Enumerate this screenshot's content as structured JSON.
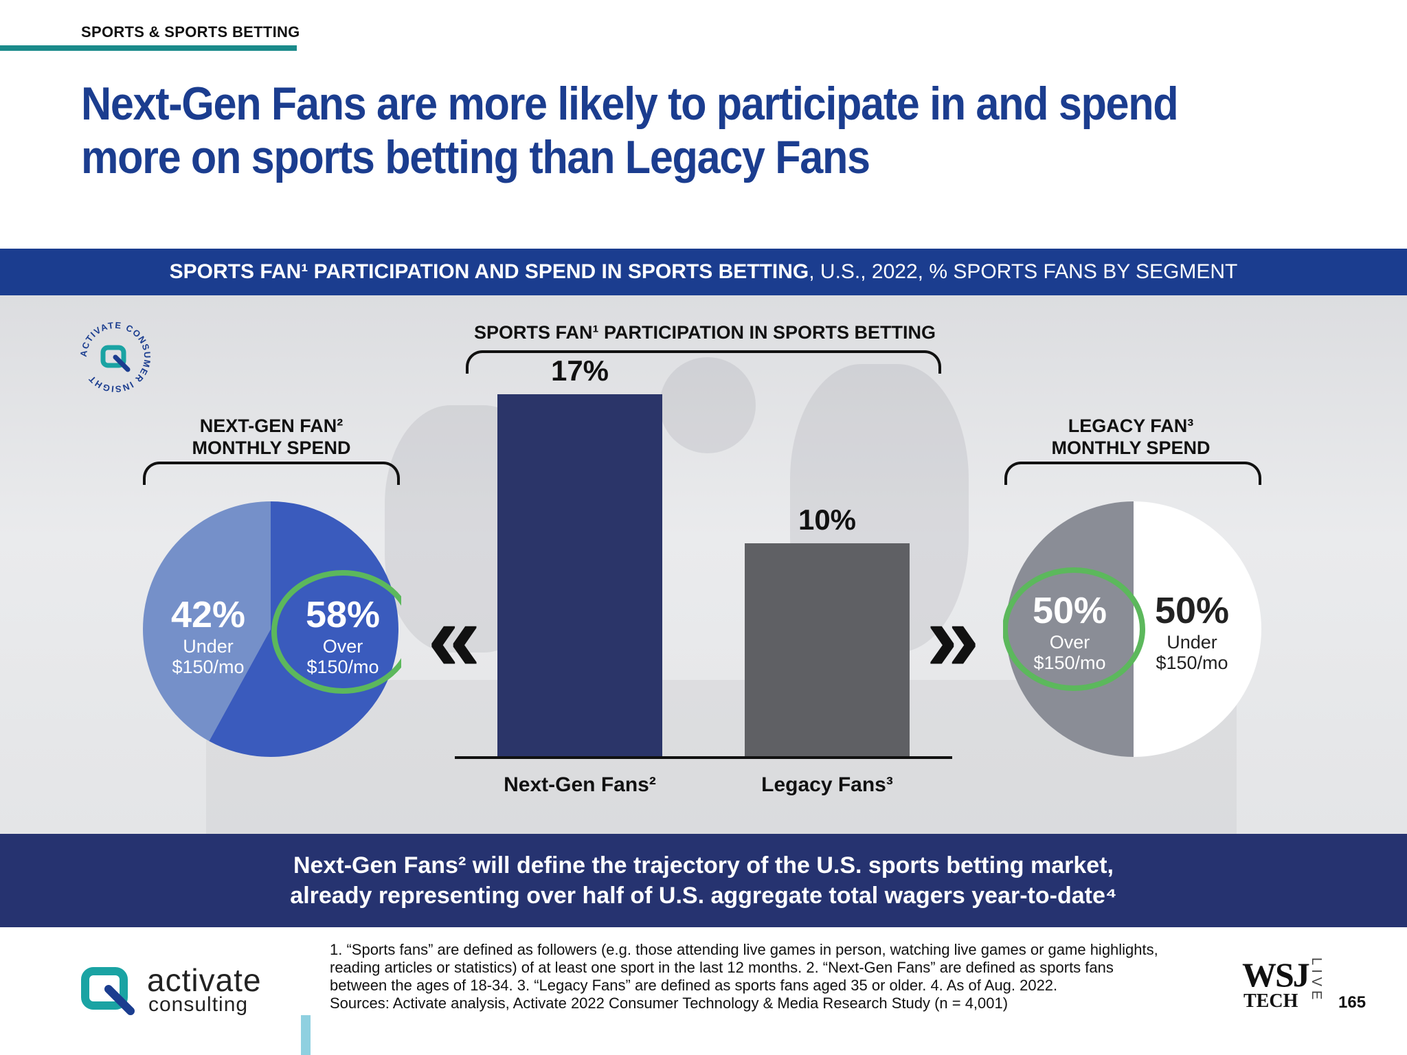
{
  "section_label": "SPORTS & SPORTS BETTING",
  "headline": "Next-Gen Fans are more likely to participate in and spend more on sports betting than Legacy Fans",
  "banner": {
    "bold": "SPORTS FAN¹ PARTICIPATION AND SPEND IN SPORTS BETTING",
    "rest": ", U.S., 2022, % SPORTS FANS BY SEGMENT"
  },
  "stamp_text": "ACTIVATE CONSUMER INSIGHT",
  "center_title": "SPORTS FAN¹ PARTICIPATION IN SPORTS BETTING",
  "left_title_line1": "NEXT-GEN FAN²",
  "left_title_line2": "MONTHLY SPEND",
  "right_title_line1": "LEGACY FAN³",
  "right_title_line2": "MONTHLY SPEND",
  "left_pie": {
    "a_pct": "42%",
    "a_sub1": "Under",
    "a_sub2": "$150/mo",
    "b_pct": "58%",
    "b_sub1": "Over",
    "b_sub2": "$150/mo"
  },
  "right_pie": {
    "a_pct": "50%",
    "a_sub1": "Over",
    "a_sub2": "$150/mo",
    "b_pct": "50%",
    "b_sub1": "Under",
    "b_sub2": "$150/mo"
  },
  "bars": {
    "v1": "17%",
    "v2": "10%",
    "c1": "Next-Gen Fans²",
    "c2": "Legacy Fans³"
  },
  "chevron_left": "«",
  "chevron_right": "»",
  "takeaway_line1": "Next-Gen Fans² will define the trajectory of the U.S. sports betting market,",
  "takeaway_line2": "already representing over half of U.S. aggregate total wagers year-to-date⁴",
  "logo_word1": "activate",
  "logo_word2": "consulting",
  "footnotes": [
    "1. “Sports fans” are defined as followers (e.g. those attending live games in person, watching live games or game highlights,",
    "reading articles or statistics) of at least one sport in the last 12 months.  2. “Next-Gen Fans” are defined as sports fans",
    "between the ages of 18-34.  3. “Legacy Fans” are defined as sports fans aged 35 or older.  4. As of Aug. 2022.",
    "Sources: Activate analysis, Activate 2022 Consumer Technology & Media Research Study (n = 4,001)"
  ],
  "wsj_line1": "WSJ",
  "wsj_line2": "TECH",
  "wsj_line3": "LIVE",
  "page_number": "165",
  "colors": {
    "brand_blue": "#1b3d8f",
    "bar_nextgen": "#2b3569",
    "bar_legacy": "#5f6064",
    "pie_nextgen_over": "#3a5bbd",
    "pie_nextgen_under": "#7590c9",
    "pie_legacy_over": "#8a8d96",
    "pie_legacy_under": "#ffffff",
    "highlight_ring": "#5cb85c"
  },
  "chart_data": [
    {
      "type": "bar",
      "title": "SPORTS FAN¹ PARTICIPATION IN SPORTS BETTING",
      "categories": [
        "Next-Gen Fans²",
        "Legacy Fans³"
      ],
      "values": [
        17,
        10
      ],
      "unit": "%",
      "ylim": [
        0,
        20
      ]
    },
    {
      "type": "pie",
      "title": "NEXT-GEN FAN² MONTHLY SPEND",
      "categories": [
        "Under $150/mo",
        "Over $150/mo"
      ],
      "values": [
        42,
        58
      ],
      "unit": "%"
    },
    {
      "type": "pie",
      "title": "LEGACY FAN³ MONTHLY SPEND",
      "categories": [
        "Over $150/mo",
        "Under $150/mo"
      ],
      "values": [
        50,
        50
      ],
      "unit": "%"
    }
  ]
}
